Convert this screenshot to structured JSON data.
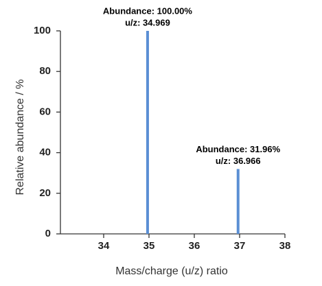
{
  "chart_data": {
    "type": "bar",
    "x": [
      34.969,
      36.966
    ],
    "values": [
      100,
      31.96
    ],
    "value_labels": [
      "Abundance: 100.00%",
      "Abundance: 31.96%"
    ],
    "x_labels": [
      "u/z: 34.969",
      "u/z: 36.966"
    ],
    "color": "#5b8fd4",
    "xlim": [
      33,
      38
    ],
    "xticks": [
      34,
      35,
      36,
      37,
      38
    ],
    "ylim": [
      0,
      100
    ],
    "yticks": [
      0,
      20,
      40,
      60,
      80,
      100
    ],
    "x_label": "Mass/charge (u/z)  ratio",
    "y_label": "Relative abundance / %"
  }
}
